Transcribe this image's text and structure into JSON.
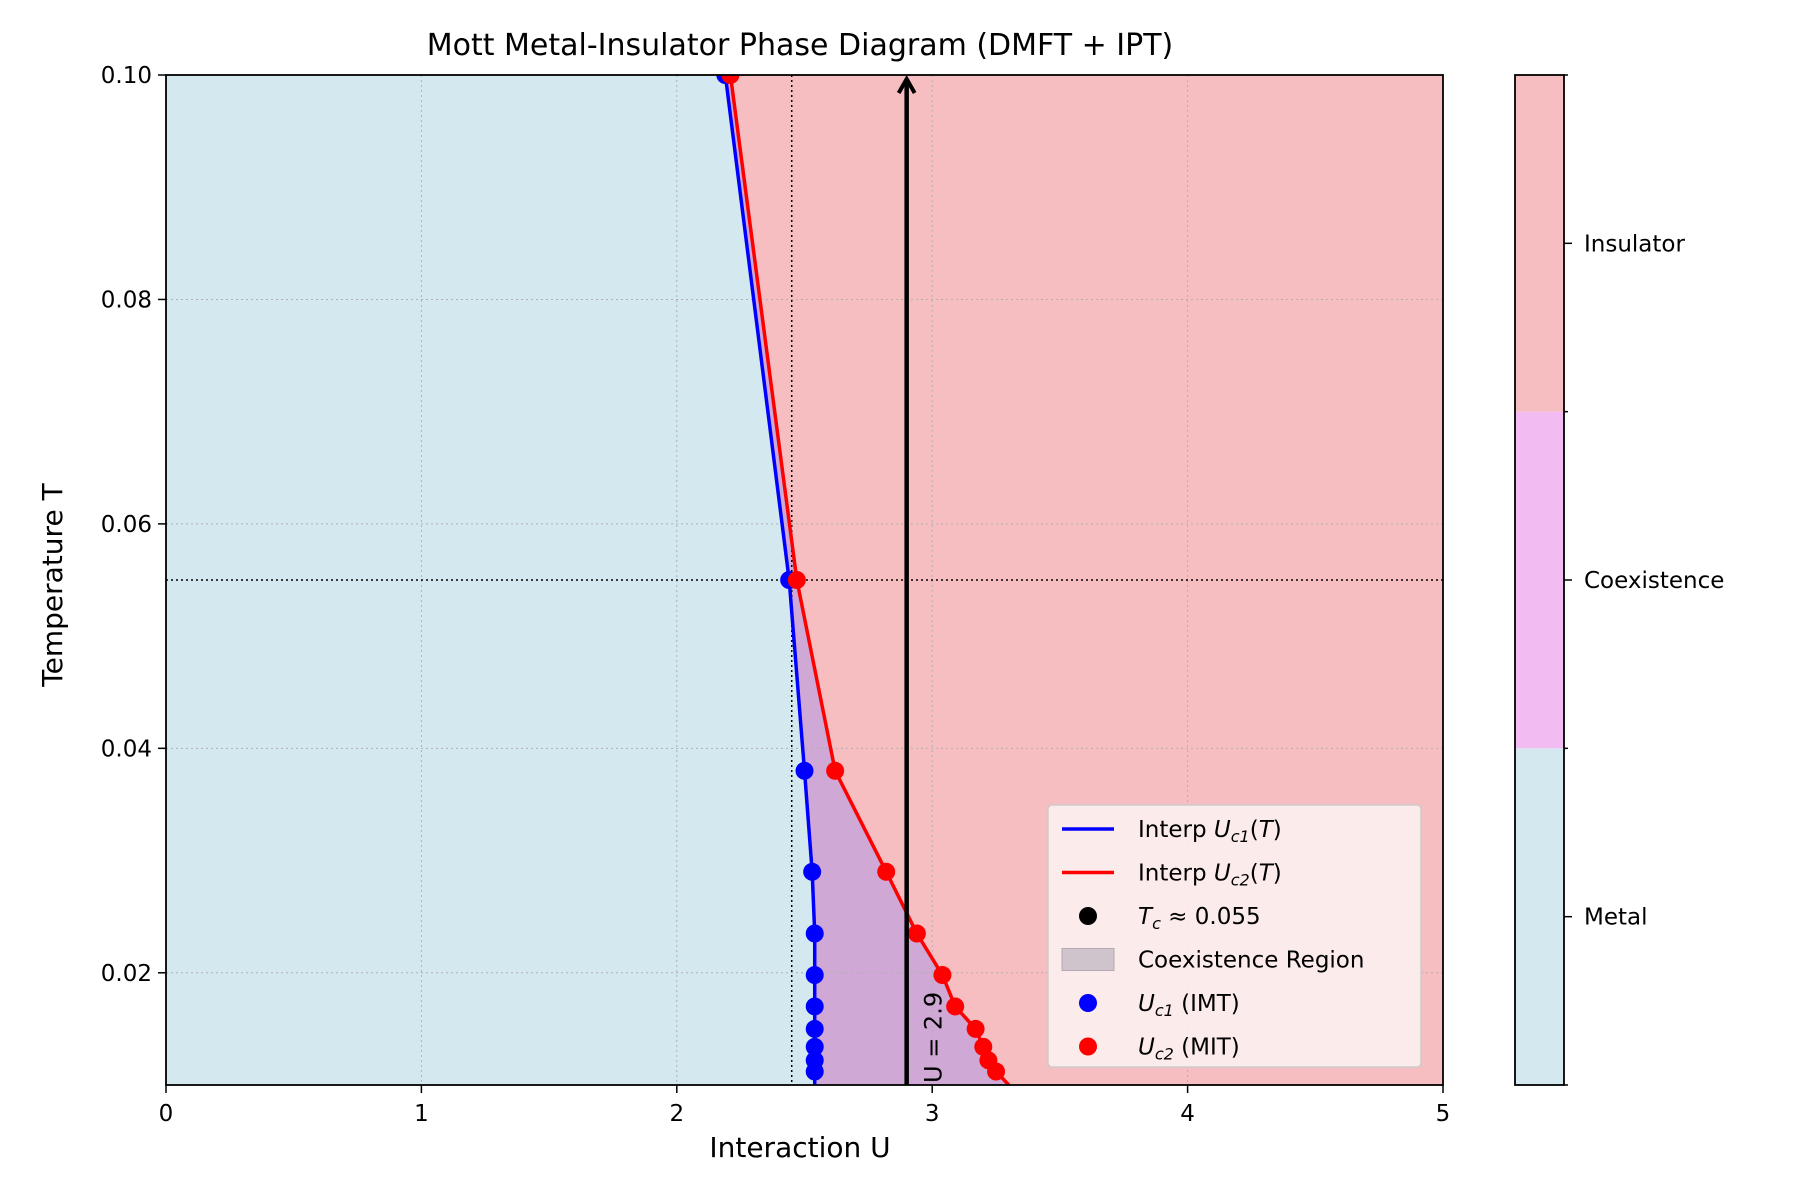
{
  "chart_data": {
    "type": "line",
    "title": "Mott Metal-Insulator Phase Diagram (DMFT + IPT)",
    "xlabel": "Interaction U",
    "ylabel": "Temperature T",
    "xlim": [
      0,
      5
    ],
    "ylim": [
      0.01,
      0.1
    ],
    "xticks": [
      0,
      1,
      2,
      3,
      4,
      5
    ],
    "xtick_labels": [
      "0",
      "1",
      "2",
      "3",
      "4",
      "5"
    ],
    "yticks": [
      0.02,
      0.04,
      0.06,
      0.08,
      0.1
    ],
    "ytick_labels": [
      "0.02",
      "0.04",
      "0.06",
      "0.08",
      "0.10"
    ],
    "grid": true,
    "legend_position": "lower right",
    "colors": {
      "metal": "#d4e9ef",
      "insulator": "#f7bec2",
      "coexistence": "#f2bcf2",
      "coexistence_overlay": "#cfa8d6",
      "uc1": "#0000ff",
      "uc2": "#ff0000",
      "tc": "#000000"
    },
    "regions": [
      "Metal",
      "Coexistence",
      "Insulator"
    ],
    "series": [
      {
        "name": "Interp Uc1(T)",
        "kind": "line",
        "color": "#0000ff",
        "x": [
          2.19,
          2.44,
          2.5,
          2.53,
          2.54,
          2.54,
          2.54,
          2.54,
          2.54,
          2.54,
          2.54,
          2.54
        ],
        "y": [
          0.1,
          0.055,
          0.038,
          0.029,
          0.0235,
          0.0198,
          0.017,
          0.015,
          0.0134,
          0.0122,
          0.0112,
          0.01
        ]
      },
      {
        "name": "Interp Uc2(T)",
        "kind": "line",
        "color": "#ff0000",
        "x": [
          2.21,
          2.47,
          2.62,
          2.82,
          2.94,
          3.04,
          3.09,
          3.17,
          3.2,
          3.22,
          3.25,
          3.3
        ],
        "y": [
          0.1,
          0.055,
          0.038,
          0.029,
          0.0235,
          0.0198,
          0.017,
          0.015,
          0.0134,
          0.0122,
          0.0112,
          0.01
        ]
      },
      {
        "name": "Uc1 (IMT)",
        "kind": "scatter",
        "color": "#0000ff",
        "x": [
          2.19,
          2.44,
          2.5,
          2.53,
          2.54,
          2.54,
          2.54,
          2.54,
          2.54,
          2.54,
          2.54
        ],
        "y": [
          0.1,
          0.055,
          0.038,
          0.029,
          0.0235,
          0.0198,
          0.017,
          0.015,
          0.0134,
          0.0122,
          0.0112
        ]
      },
      {
        "name": "Uc2 (MIT)",
        "kind": "scatter",
        "color": "#ff0000",
        "x": [
          2.21,
          2.47,
          2.62,
          2.82,
          2.94,
          3.04,
          3.09,
          3.17,
          3.2,
          3.22,
          3.25
        ],
        "y": [
          0.1,
          0.055,
          0.038,
          0.029,
          0.0235,
          0.0198,
          0.017,
          0.015,
          0.0134,
          0.0122,
          0.0112
        ]
      }
    ],
    "critical_point": {
      "label": "Tc ≈ 0.055",
      "U": 2.45,
      "T": 0.055
    },
    "arrow": {
      "U": 2.9,
      "T_from": 0.01,
      "T_to": 0.1,
      "label": "U = 2.9"
    },
    "legend": [
      {
        "kind": "line",
        "color": "#0000ff",
        "label": "Interp Uc1(T)"
      },
      {
        "kind": "line",
        "color": "#ff0000",
        "label": "Interp Uc2(T)"
      },
      {
        "kind": "marker",
        "color": "#000000",
        "label": "Tc ≈ 0.055"
      },
      {
        "kind": "patch",
        "color": "#cfc4cc",
        "label": "Coexistence Region"
      },
      {
        "kind": "marker",
        "color": "#0000ff",
        "label": "Uc1 (IMT)"
      },
      {
        "kind": "marker",
        "color": "#ff0000",
        "label": "Uc2 (MIT)"
      }
    ]
  }
}
